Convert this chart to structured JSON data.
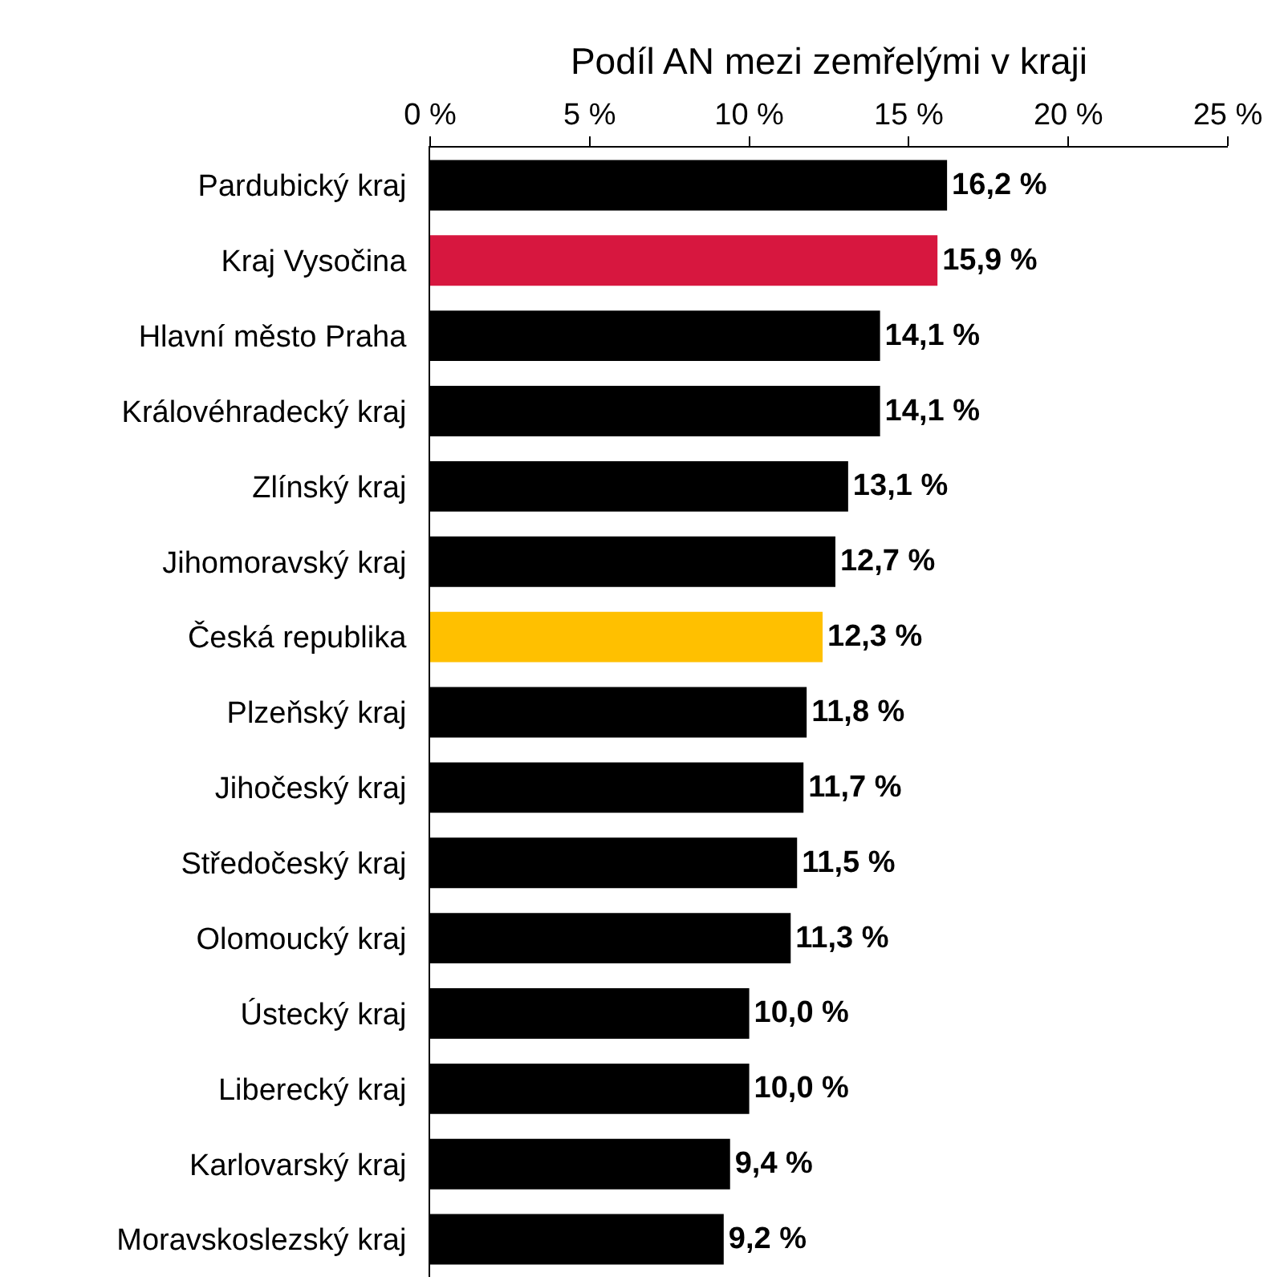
{
  "chart_data": {
    "type": "bar",
    "orientation": "horizontal",
    "xlabel": "Podíl AN mezi zemřelými v kraji",
    "categories": [
      "Pardubický kraj",
      "Kraj Vysočina",
      "Hlavní město Praha",
      "Královéhradecký kraj",
      "Zlínský kraj",
      "Jihomoravský kraj",
      "Česká republika",
      "Plzeňský kraj",
      "Jihočeský kraj",
      "Středočeský kraj",
      "Olomoucký kraj",
      "Ústecký kraj",
      "Liberecký kraj",
      "Karlovarský kraj",
      "Moravskoslezský kraj"
    ],
    "values": [
      16.2,
      15.9,
      14.1,
      14.1,
      13.1,
      12.7,
      12.3,
      11.8,
      11.7,
      11.5,
      11.3,
      10.0,
      10.0,
      9.4,
      9.2
    ],
    "colors": [
      "#000000",
      "#d7173f",
      "#000000",
      "#000000",
      "#000000",
      "#000000",
      "#ffc000",
      "#000000",
      "#000000",
      "#000000",
      "#000000",
      "#000000",
      "#000000",
      "#000000",
      "#000000"
    ],
    "value_labels": [
      "16,2 %",
      "15,9 %",
      "14,1 %",
      "14,1 %",
      "13,1 %",
      "12,7 %",
      "12,3 %",
      "11,8 %",
      "11,7 %",
      "11,5 %",
      "11,3 %",
      "10,0 %",
      "10,0 %",
      "9,4 %",
      "9,2 %"
    ],
    "xlim": [
      0,
      25
    ],
    "xticks": [
      {
        "value": 0,
        "label": "0 %"
      },
      {
        "value": 5,
        "label": "5 %"
      },
      {
        "value": 10,
        "label": "10 %"
      },
      {
        "value": 15,
        "label": "15 %"
      },
      {
        "value": 20,
        "label": "20 %"
      },
      {
        "value": 25,
        "label": "25 %"
      }
    ]
  }
}
